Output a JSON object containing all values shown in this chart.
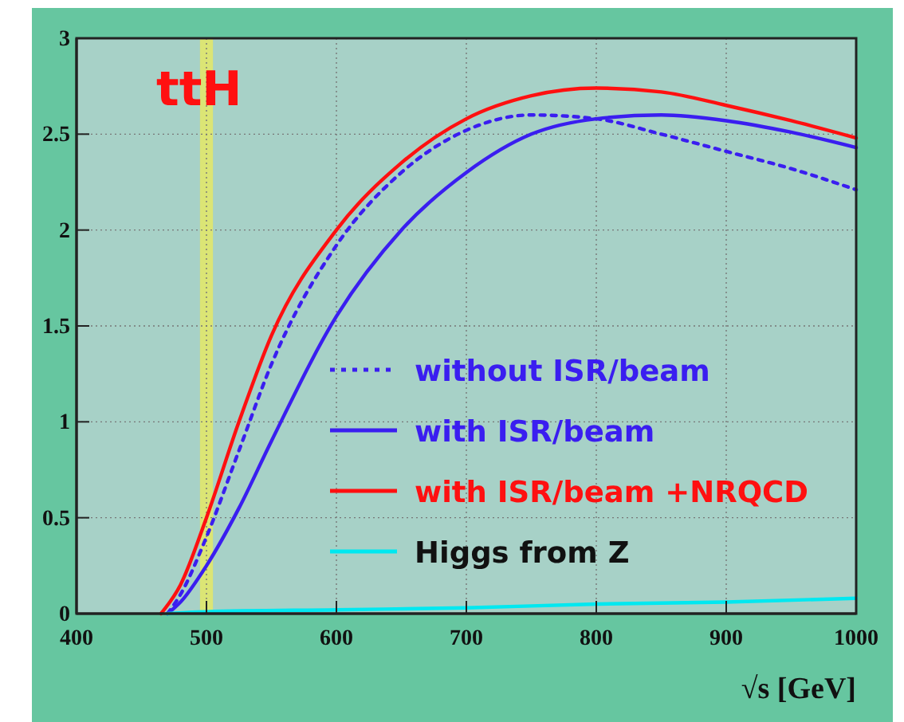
{
  "chart_data": {
    "type": "line",
    "xlabel": "√s [GeV]",
    "annotations": [
      "ttH"
    ],
    "xlim": [
      400,
      1000
    ],
    "xticks": [
      400,
      500,
      600,
      700,
      800,
      900,
      1000
    ],
    "ylim": [
      0,
      3
    ],
    "yticks": [
      0,
      0.5,
      1,
      1.5,
      2,
      2.5,
      3
    ],
    "grid": true,
    "legend": "right",
    "bands": [
      {
        "axis": "x",
        "from": 495,
        "to": 505,
        "color": "#e8ea60"
      }
    ],
    "series": [
      {
        "name": "without ISR/beam",
        "color": "#3a1ef0",
        "line_style": "dotted",
        "x": [
          470,
          480,
          500,
          525,
          550,
          600,
          650,
          700,
          750,
          800,
          850,
          900,
          950,
          1000
        ],
        "values": [
          0,
          0.1,
          0.4,
          0.85,
          1.3,
          1.92,
          2.3,
          2.52,
          2.6,
          2.58,
          2.5,
          2.41,
          2.32,
          2.21
        ]
      },
      {
        "name": "with ISR/beam",
        "color": "#3a1ef0",
        "line_style": "solid",
        "x": [
          470,
          480,
          500,
          525,
          550,
          600,
          650,
          700,
          750,
          800,
          850,
          900,
          950,
          1000
        ],
        "values": [
          0,
          0.06,
          0.25,
          0.55,
          0.9,
          1.55,
          2.0,
          2.3,
          2.5,
          2.58,
          2.6,
          2.57,
          2.51,
          2.43
        ]
      },
      {
        "name": "with ISR/beam +NRQCD",
        "color": "#ff1010",
        "line_style": "solid",
        "x": [
          465,
          480,
          500,
          525,
          550,
          600,
          650,
          700,
          750,
          800,
          850,
          900,
          950,
          1000
        ],
        "values": [
          0,
          0.15,
          0.5,
          1.0,
          1.45,
          2.0,
          2.35,
          2.58,
          2.7,
          2.74,
          2.72,
          2.65,
          2.57,
          2.48
        ]
      },
      {
        "name": "Higgs from Z",
        "color": "#00e8f0",
        "line_style": "solid",
        "x": [
          470,
          500,
          600,
          700,
          800,
          900,
          1000
        ],
        "values": [
          0,
          0.01,
          0.02,
          0.03,
          0.05,
          0.06,
          0.08
        ]
      }
    ]
  }
}
